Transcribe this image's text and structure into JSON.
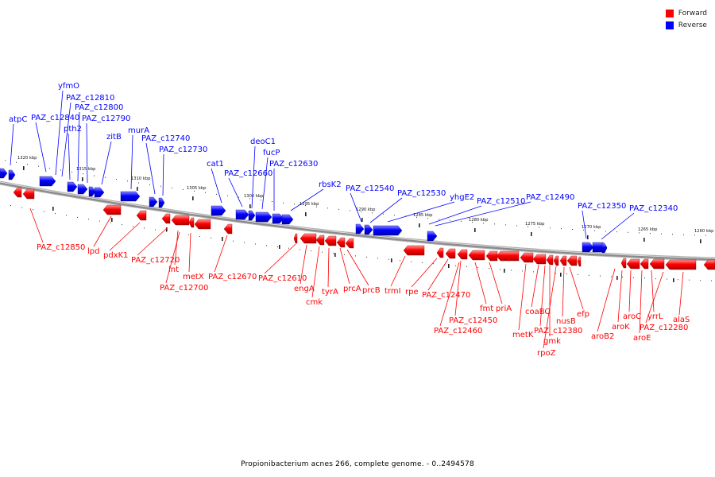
{
  "legend": {
    "forward_label": "Forward",
    "reverse_label": "Reverse",
    "forward_color": "#ff0000",
    "reverse_color": "#0000ff"
  },
  "caption": "Propionibacterium acnes 266, complete genome. - 0..2494578",
  "backbone_color": "#8a8a8a",
  "ticks": [
    "1320 kbp",
    "1315 kbp",
    "1310 kbp",
    "1305 kbp",
    "1300 kbp",
    "1295 kbp",
    "1290 kbp",
    "1285 kbp",
    "1280 kbp",
    "1275 kbp",
    "1270 kbp",
    "1265 kbp",
    "1260 kbp"
  ],
  "reverse_genes": [
    "atpC",
    "PAZ_c12840",
    "yfmO",
    "PAZ_c12810",
    "pth2",
    "PAZ_c12800",
    "PAZ_c12790",
    "zitB",
    "murA",
    "PAZ_c12740",
    "PAZ_c12730",
    "cat1",
    "PAZ_c12660",
    "deoC1",
    "fucP",
    "PAZ_c12630",
    "rbsK2",
    "PAZ_c12540",
    "PAZ_c12530",
    "yhgE2",
    "PAZ_c12510",
    "PAZ_c12490",
    "PAZ_c12350",
    "PAZ_c12340"
  ],
  "forward_genes": [
    "PAZ_c12850",
    "lpd",
    "pdxK1",
    "PAZ_c12720",
    "lnt",
    "PAZ_c12700",
    "metX",
    "PAZ_c12670",
    "PAZ_c12610",
    "engA",
    "cmk",
    "tyrA",
    "prcA",
    "prcB",
    "trmI",
    "rpe",
    "PAZ_c12470",
    "PAZ_c12450",
    "PAZ_c12460",
    "fmt",
    "priA",
    "metK",
    "coaBC",
    "PAZ_c12380",
    "gmk",
    "rpoZ",
    "nusB",
    "efp",
    "aroB2",
    "aroK",
    "aroC",
    "aroE",
    "yrrL",
    "PAZ_c12280",
    "alaS"
  ]
}
